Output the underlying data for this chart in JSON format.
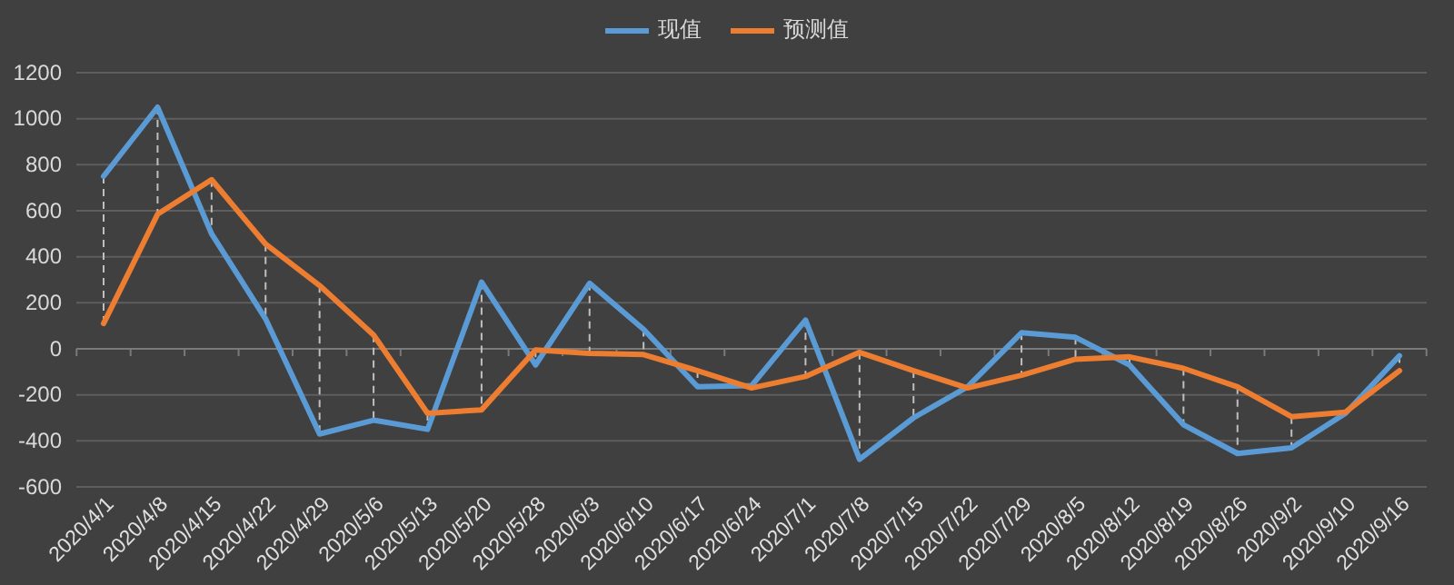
{
  "chart_data": {
    "type": "line",
    "categories": [
      "2020/4/1",
      "2020/4/8",
      "2020/4/15",
      "2020/4/22",
      "2020/4/29",
      "2020/5/6",
      "2020/5/13",
      "2020/5/20",
      "2020/5/28",
      "2020/6/3",
      "2020/6/10",
      "2020/6/17",
      "2020/6/24",
      "2020/7/1",
      "2020/7/8",
      "2020/7/15",
      "2020/7/22",
      "2020/7/29",
      "2020/8/5",
      "2020/8/12",
      "2020/8/19",
      "2020/8/26",
      "2020/9/2",
      "2020/9/10",
      "2020/9/16"
    ],
    "series": [
      {
        "name": "现值",
        "color": "#5b9bd5",
        "values": [
          750,
          1050,
          500,
          130,
          -370,
          -310,
          -350,
          290,
          -70,
          285,
          85,
          -165,
          -160,
          125,
          -480,
          -300,
          -165,
          70,
          50,
          -70,
          -330,
          -455,
          -430,
          -280,
          -30
        ]
      },
      {
        "name": "预测值",
        "color": "#ed7d31",
        "values": [
          110,
          585,
          735,
          455,
          275,
          60,
          -280,
          -265,
          -5,
          -20,
          -25,
          -95,
          -170,
          -120,
          -15,
          -95,
          -170,
          -115,
          -45,
          -35,
          -85,
          -165,
          -295,
          -275,
          -95
        ]
      }
    ],
    "ylim": [
      -600,
      1200
    ],
    "yticks": [
      -600,
      -400,
      -200,
      0,
      200,
      400,
      600,
      800,
      1000,
      1200
    ],
    "grid": "y",
    "legend": "top",
    "marker": "none",
    "line_style": "solid"
  }
}
